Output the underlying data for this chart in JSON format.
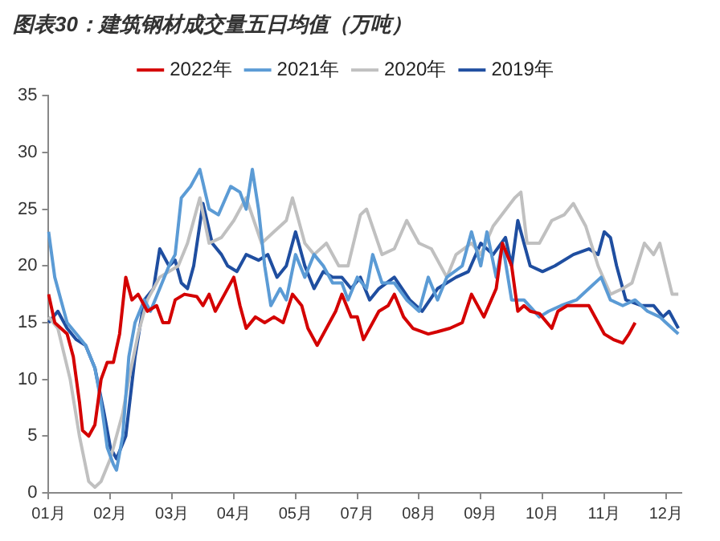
{
  "chart_data": {
    "type": "line",
    "title": "图表30：建筑钢材成交量五日均值（万吨）",
    "categories": [
      "01月",
      null,
      null,
      null,
      null,
      null,
      null,
      null,
      null,
      null,
      null,
      null,
      null,
      null,
      null,
      null,
      null,
      null,
      null,
      null,
      "02月",
      null,
      null,
      null,
      null,
      null,
      null,
      null,
      null,
      null,
      null,
      null,
      null,
      null,
      null,
      null,
      null,
      null,
      null,
      null,
      "03月",
      null,
      null,
      null,
      null,
      null,
      null,
      null,
      null,
      null,
      null,
      null,
      null,
      null,
      null,
      null,
      null,
      null,
      null,
      null,
      "04月",
      null,
      null,
      null,
      null,
      null,
      null,
      null,
      null,
      null,
      null,
      null,
      null,
      null,
      null,
      null,
      null,
      null,
      null,
      null,
      "05月",
      null,
      null,
      null,
      null,
      null,
      null,
      null,
      null,
      null,
      null,
      null,
      null,
      null,
      null,
      null,
      null,
      null,
      null,
      null,
      "07月",
      null,
      null,
      null,
      null,
      null,
      null,
      null,
      null,
      null,
      null,
      null,
      null,
      null,
      null,
      null,
      null,
      null,
      null,
      null,
      "08月",
      null,
      null,
      null,
      null,
      null,
      null,
      null,
      null,
      null,
      null,
      null,
      null,
      null,
      null,
      null,
      null,
      null,
      null,
      null,
      "09月",
      null,
      null,
      null,
      null,
      null,
      null,
      null,
      null,
      null,
      null,
      null,
      null,
      null,
      null,
      null,
      null,
      null,
      null,
      null,
      "10月",
      null,
      null,
      null,
      null,
      null,
      null,
      null,
      null,
      null,
      null,
      null,
      null,
      null,
      null,
      null,
      null,
      null,
      null,
      null,
      "11月",
      null,
      null,
      null,
      null,
      null,
      null,
      null,
      null,
      null,
      null,
      null,
      null,
      null,
      null,
      null,
      null,
      null,
      null,
      null,
      "12月",
      null,
      null,
      null,
      null,
      null
    ],
    "ylim": [
      0,
      35
    ],
    "yticks": [
      0,
      5,
      10,
      15,
      20,
      25,
      30,
      35
    ],
    "grid": false,
    "legend": "top",
    "marker": "none",
    "line_style": "solid",
    "series": [
      {
        "name": "2022年",
        "color": "#d40000",
        "values": [
          17.5,
          null,
          15,
          null,
          null,
          null,
          14,
          null,
          12,
          null,
          8,
          5.5,
          null,
          5,
          null,
          6,
          null,
          10,
          null,
          11.5,
          null,
          11.5,
          null,
          14,
          null,
          19,
          null,
          17,
          null,
          17.5,
          null,
          null,
          16,
          null,
          null,
          16.5,
          null,
          15,
          null,
          15,
          null,
          17,
          null,
          null,
          17.5,
          null,
          null,
          null,
          17.3,
          null,
          16.5,
          null,
          17.5,
          null,
          16,
          null,
          null,
          17.5,
          null,
          null,
          19,
          null,
          16.5,
          null,
          14.5,
          null,
          null,
          15.5,
          null,
          null,
          15,
          null,
          null,
          15.5,
          null,
          null,
          15,
          null,
          null,
          17.5,
          null,
          null,
          16.5,
          null,
          14.5,
          null,
          null,
          13,
          null,
          null,
          14.5,
          null,
          null,
          16,
          null,
          17.5,
          null,
          null,
          15.5,
          null,
          15.5,
          null,
          13.5,
          null,
          null,
          null,
          null,
          16,
          null,
          null,
          16.5,
          null,
          17.5,
          null,
          null,
          15.5,
          null,
          null,
          14.5,
          null,
          null,
          null,
          null,
          14,
          null,
          null,
          14.2,
          null,
          null,
          null,
          14.5,
          null,
          null,
          null,
          15,
          null,
          null,
          17.5,
          null,
          null,
          null,
          15.5,
          null,
          null,
          null,
          18,
          null,
          22,
          null,
          null,
          20,
          null,
          16,
          null,
          16.5,
          null,
          16,
          null,
          null,
          15.8,
          null,
          null,
          null,
          14.5,
          null,
          16,
          null,
          null,
          16.5,
          null,
          null,
          null,
          16.5,
          null,
          null,
          16.5,
          null,
          null,
          null,
          null,
          14,
          null,
          null,
          13.5,
          null,
          null,
          13.2,
          null,
          14,
          null,
          15,
          null,
          null,
          null,
          null,
          null,
          null,
          null,
          null,
          null,
          null,
          null,
          null,
          null,
          null,
          null
        ]
      },
      {
        "name": "2021年",
        "color": "#5b9bd5",
        "values": [
          23,
          null,
          19,
          null,
          17,
          null,
          15,
          null,
          null,
          14,
          null,
          null,
          13,
          null,
          null,
          11,
          null,
          8,
          null,
          4,
          null,
          2.5,
          2,
          null,
          5,
          null,
          12,
          null,
          15,
          null,
          null,
          17,
          null,
          16,
          null,
          null,
          18,
          null,
          null,
          20,
          null,
          21,
          null,
          26,
          null,
          null,
          27,
          null,
          null,
          28.5,
          null,
          null,
          25,
          null,
          null,
          24.5,
          null,
          null,
          null,
          27,
          null,
          null,
          26.5,
          null,
          25,
          null,
          28.5,
          null,
          25,
          null,
          20,
          null,
          16.5,
          null,
          null,
          18,
          null,
          17,
          null,
          null,
          21,
          null,
          null,
          19,
          null,
          null,
          21,
          null,
          null,
          20,
          null,
          null,
          18.5,
          null,
          null,
          18.5,
          null,
          17,
          null,
          null,
          19,
          null,
          null,
          18,
          null,
          21,
          null,
          null,
          18.5,
          null,
          null,
          null,
          18.5,
          null,
          null,
          null,
          17,
          null,
          null,
          null,
          16,
          null,
          null,
          19,
          null,
          null,
          17,
          null,
          null,
          19,
          null,
          null,
          null,
          null,
          20,
          null,
          null,
          23,
          null,
          null,
          20,
          null,
          23,
          null,
          null,
          19,
          null,
          22,
          null,
          null,
          17,
          null,
          null,
          null,
          17,
          null,
          null,
          null,
          null,
          15.5,
          null,
          null,
          16,
          null,
          null,
          null,
          16.5,
          null,
          null,
          null,
          null,
          17,
          null,
          null,
          null,
          18,
          null,
          null,
          null,
          19,
          null,
          null,
          17,
          null,
          null,
          null,
          16.5,
          null,
          null,
          null,
          17,
          null,
          null,
          null,
          16,
          null,
          null,
          null,
          15.5,
          null,
          15,
          null,
          null,
          null,
          14,
          null
        ]
      },
      {
        "name": "2020年",
        "color": "#c0c0c0",
        "values": [
          15.5,
          null,
          null,
          14.5,
          null,
          null,
          null,
          10,
          null,
          null,
          5,
          null,
          null,
          1,
          null,
          0.5,
          null,
          1,
          null,
          null,
          3,
          null,
          null,
          null,
          7,
          null,
          10,
          null,
          null,
          14,
          null,
          null,
          17,
          null,
          null,
          null,
          19,
          null,
          null,
          null,
          null,
          null,
          20,
          null,
          null,
          22,
          null,
          null,
          null,
          26,
          null,
          null,
          22,
          null,
          null,
          null,
          22.5,
          null,
          null,
          null,
          24,
          null,
          null,
          null,
          26,
          null,
          null,
          null,
          null,
          22,
          null,
          null,
          null,
          23,
          null,
          null,
          null,
          24,
          null,
          26,
          null,
          null,
          null,
          22,
          null,
          null,
          21,
          null,
          null,
          null,
          22,
          null,
          null,
          null,
          20,
          null,
          null,
          20,
          null,
          null,
          null,
          24.5,
          null,
          25,
          null,
          null,
          null,
          null,
          21,
          null,
          null,
          null,
          21.5,
          null,
          null,
          null,
          24,
          null,
          null,
          null,
          22,
          null,
          null,
          null,
          21.5,
          null,
          null,
          null,
          null,
          19,
          null,
          null,
          21,
          null,
          null,
          null,
          null,
          22,
          null,
          null,
          21,
          null,
          null,
          null,
          23.5,
          null,
          null,
          null,
          null,
          null,
          null,
          26,
          null,
          26.5,
          null,
          22,
          null,
          null,
          null,
          22,
          null,
          null,
          null,
          24,
          null,
          null,
          null,
          24.5,
          null,
          null,
          25.5,
          null,
          null,
          null,
          23.5,
          null,
          null,
          null,
          20,
          null,
          null,
          null,
          17.5,
          null,
          null,
          null,
          18,
          null,
          null,
          18.5,
          null,
          null,
          null,
          22,
          null,
          null,
          21,
          null,
          22,
          null,
          null,
          null,
          17.5,
          null,
          17.5,
          null
        ]
      },
      {
        "name": "2019年",
        "color": "#1f4ea0",
        "values": [
          15,
          null,
          null,
          16,
          null,
          null,
          14.5,
          null,
          null,
          13.5,
          null,
          null,
          13,
          null,
          null,
          11,
          null,
          null,
          7,
          null,
          4,
          null,
          3,
          null,
          null,
          5,
          null,
          null,
          12,
          null,
          null,
          17,
          null,
          null,
          18,
          null,
          21.5,
          null,
          null,
          20,
          null,
          20.5,
          null,
          18.5,
          null,
          18,
          null,
          20,
          null,
          null,
          25.5,
          null,
          null,
          22,
          null,
          null,
          21,
          null,
          20,
          null,
          null,
          19.5,
          null,
          null,
          21,
          null,
          null,
          null,
          20.5,
          null,
          null,
          21,
          null,
          null,
          19,
          null,
          null,
          20,
          null,
          null,
          23,
          null,
          null,
          20,
          null,
          null,
          18,
          null,
          null,
          19.5,
          null,
          null,
          19,
          null,
          null,
          19,
          null,
          null,
          18,
          null,
          null,
          19,
          null,
          null,
          17,
          null,
          null,
          18,
          null,
          null,
          null,
          null,
          19,
          null,
          null,
          null,
          null,
          17,
          null,
          null,
          null,
          16,
          null,
          null,
          null,
          null,
          18,
          null,
          null,
          null,
          null,
          null,
          19,
          null,
          null,
          null,
          19.5,
          null,
          null,
          null,
          22,
          null,
          null,
          null,
          21,
          null,
          null,
          null,
          22.5,
          null,
          20,
          null,
          24,
          null,
          null,
          null,
          20,
          null,
          null,
          null,
          19.5,
          null,
          null,
          null,
          20,
          null,
          null,
          null,
          null,
          null,
          21,
          null,
          null,
          null,
          null,
          21.5,
          null,
          null,
          21,
          null,
          23,
          null,
          22.5,
          null,
          20,
          null,
          null,
          17,
          null,
          null,
          null,
          null,
          16.5,
          null,
          null,
          null,
          16.5,
          null,
          null,
          15.5,
          null,
          16,
          null,
          null,
          14.5,
          null
        ]
      }
    ]
  }
}
